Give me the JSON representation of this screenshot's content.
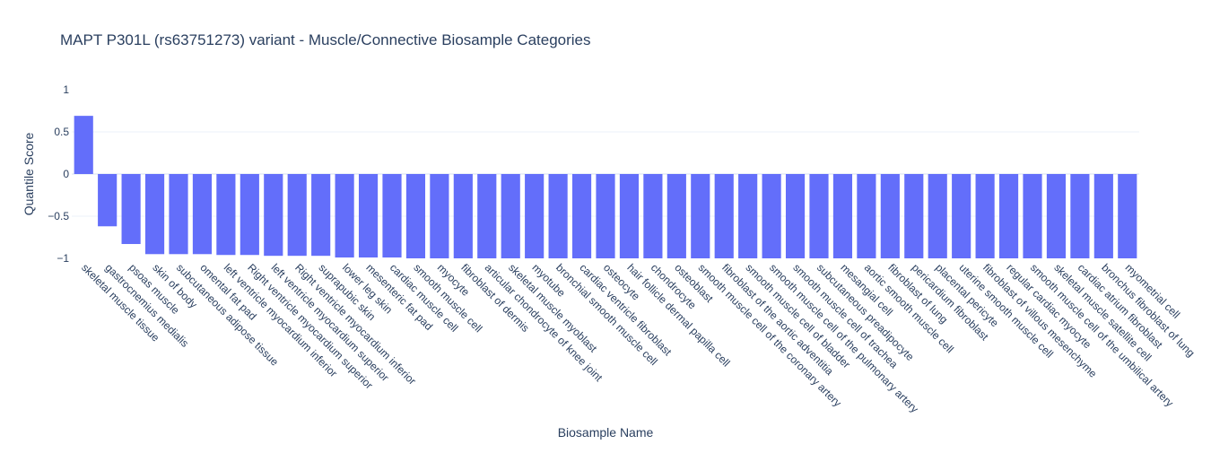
{
  "chart_data": {
    "type": "bar",
    "title": "MAPT P301L (rs63751273) variant - Muscle/Connective Biosample Categories",
    "xlabel": "Biosample Name",
    "ylabel": "Quantile Score",
    "ylim": [
      -1,
      1
    ],
    "yticks": [
      {
        "value": 1,
        "label": "1"
      },
      {
        "value": 0.5,
        "label": "0.5"
      },
      {
        "value": 0,
        "label": "0"
      },
      {
        "value": -0.5,
        "label": "−0.5"
      },
      {
        "value": -1,
        "label": "−1"
      }
    ],
    "grid": true,
    "bar_color": "#636efa",
    "categories": [
      "skeletal muscle tissue",
      "gastrocnemius medialis",
      "psoas muscle",
      "skin of body",
      "subcutaneous adipose tissue",
      "omental fat pad",
      "left ventricle myocardium inferior",
      "Right ventricle myocardium superior",
      "left ventricle myocardium superior",
      "Right ventricle myocardium inferior",
      "suprapubic skin",
      "lower leg skin",
      "mesenteric fat pad",
      "cardiac muscle cell",
      "smooth muscle cell",
      "myocyte",
      "fibroblast of dermis",
      "articular chondrocyte of knee joint",
      "skeletal muscle myoblast",
      "myotube",
      "bronchial smooth muscle cell",
      "cardiac ventricle fibroblast",
      "osteocyte",
      "hair follicle dermal papilla cell",
      "chondrocyte",
      "osteoblast",
      "smooth muscle cell of the coronary artery",
      "fibroblast of the aortic adventitia",
      "smooth muscle cell of bladder",
      "smooth muscle cell of the pulmonary artery",
      "smooth muscle cell of trachea",
      "subcutaneous preadipocyte",
      "mesangial cell",
      "aortic smooth muscle cell",
      "fibroblast of lung",
      "pericardium fibroblast",
      "placental pericyte",
      "uterine smooth muscle cell",
      "fibroblast of villous mesenchyme",
      "regular cardiac myocyte",
      "smooth muscle cell of the umbilical artery",
      "skeletal muscle satellite cell",
      "cardiac atrium fibroblast",
      "bronchus fibroblast of lung",
      "myometrial cell"
    ],
    "values": [
      0.69,
      -0.62,
      -0.83,
      -0.95,
      -0.95,
      -0.95,
      -0.96,
      -0.96,
      -0.97,
      -0.97,
      -0.97,
      -0.99,
      -0.99,
      -0.99,
      -1.0,
      -1.0,
      -1.0,
      -1.0,
      -1.0,
      -1.0,
      -1.0,
      -1.0,
      -1.0,
      -1.0,
      -1.0,
      -1.0,
      -1.0,
      -1.0,
      -1.0,
      -1.0,
      -1.0,
      -1.0,
      -1.0,
      -1.0,
      -1.0,
      -1.0,
      -1.0,
      -1.0,
      -1.0,
      -1.0,
      -1.0,
      -1.0,
      -1.0,
      -1.0,
      -1.0
    ]
  }
}
